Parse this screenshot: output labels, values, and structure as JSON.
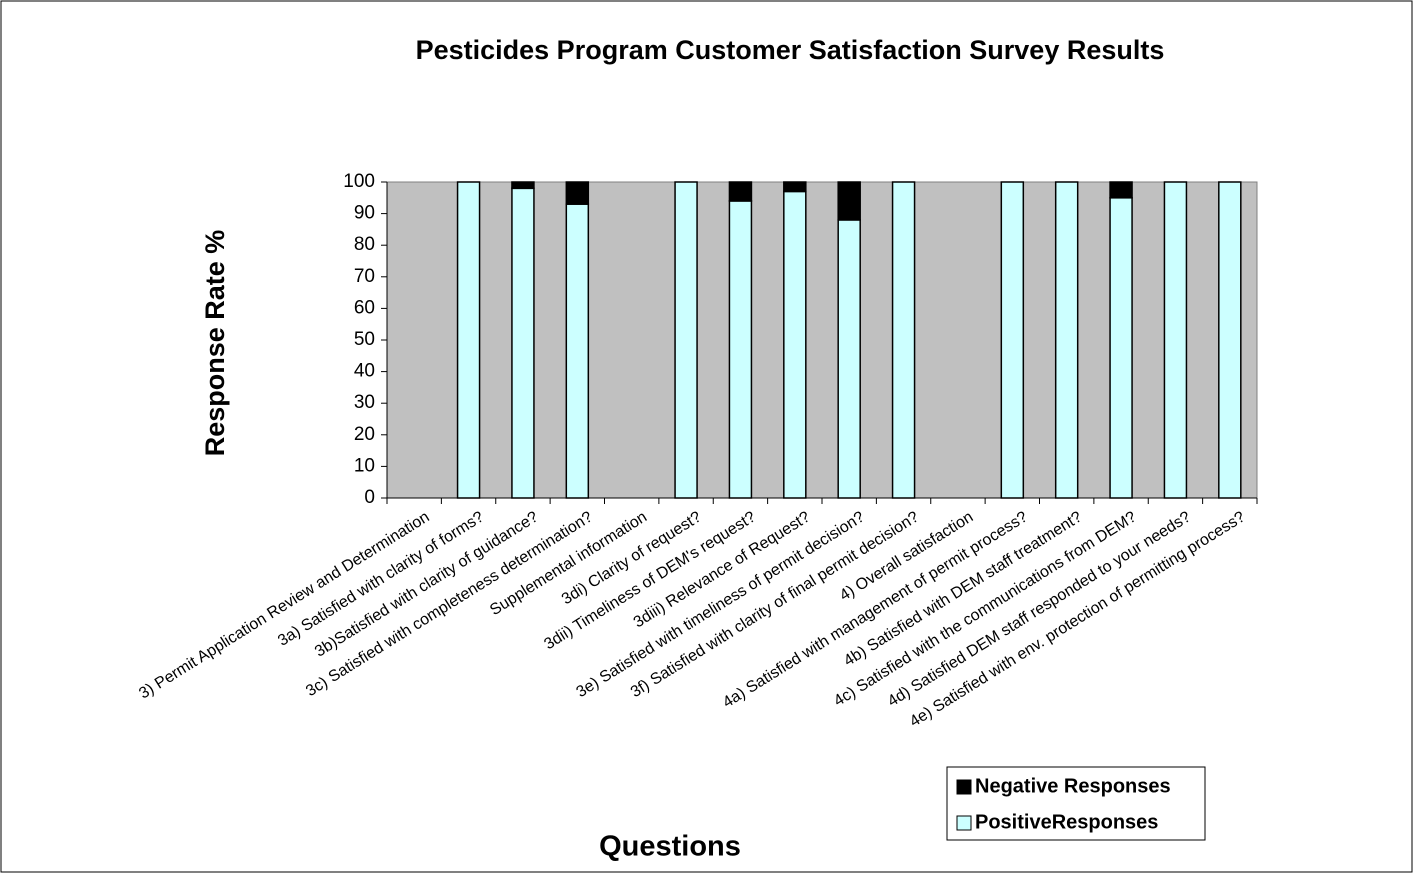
{
  "chart_data": {
    "type": "stacked_bar",
    "title": "Pesticides Program Customer Satisfaction Survey Results",
    "y_label": "Response Rate %",
    "x_label": "Questions",
    "categories": [
      "3) Permit Application Review and Determination",
      "3a) Satisfied with clarity of forms?",
      "3b)Satisfied with clarity of guidance?",
      "3c) Satisfied with completeness determination?",
      "Supplemental information",
      "3di) Clarity of request?",
      "3dii) Timeliness of DEM's request?",
      "3diii) Relevance of Request?",
      "3e) Satisfied with timeliness of permit decision?",
      "3f) Satisfied with clarity of final permit decision?",
      "4) Overall satisfaction",
      "4a) Satisfied with management of permit process?",
      "4b) Satisfied with DEM staff treatment?",
      "4c) Satisfied with the communications from DEM?",
      "4d) Satisfied DEM staff responded to your needs?",
      "4e) Satisfied with env. protection of permitting process?"
    ],
    "series": [
      {
        "name": "Negative Responses",
        "color": "#000000",
        "values": [
          null,
          0,
          2,
          7,
          null,
          0,
          6,
          3,
          12,
          0,
          null,
          0,
          0,
          5,
          0,
          0
        ]
      },
      {
        "name": "PositiveResponses",
        "color": "#ccffff",
        "values": [
          null,
          100,
          98,
          93,
          null,
          100,
          94,
          97,
          88,
          100,
          null,
          100,
          100,
          95,
          100,
          100
        ]
      }
    ],
    "ylim": [
      0,
      100
    ],
    "yticks": [
      0,
      10,
      20,
      30,
      40,
      50,
      60,
      70,
      80,
      90,
      100
    ],
    "plot_background": "#c0c0c0",
    "legend": "bottom-right"
  }
}
